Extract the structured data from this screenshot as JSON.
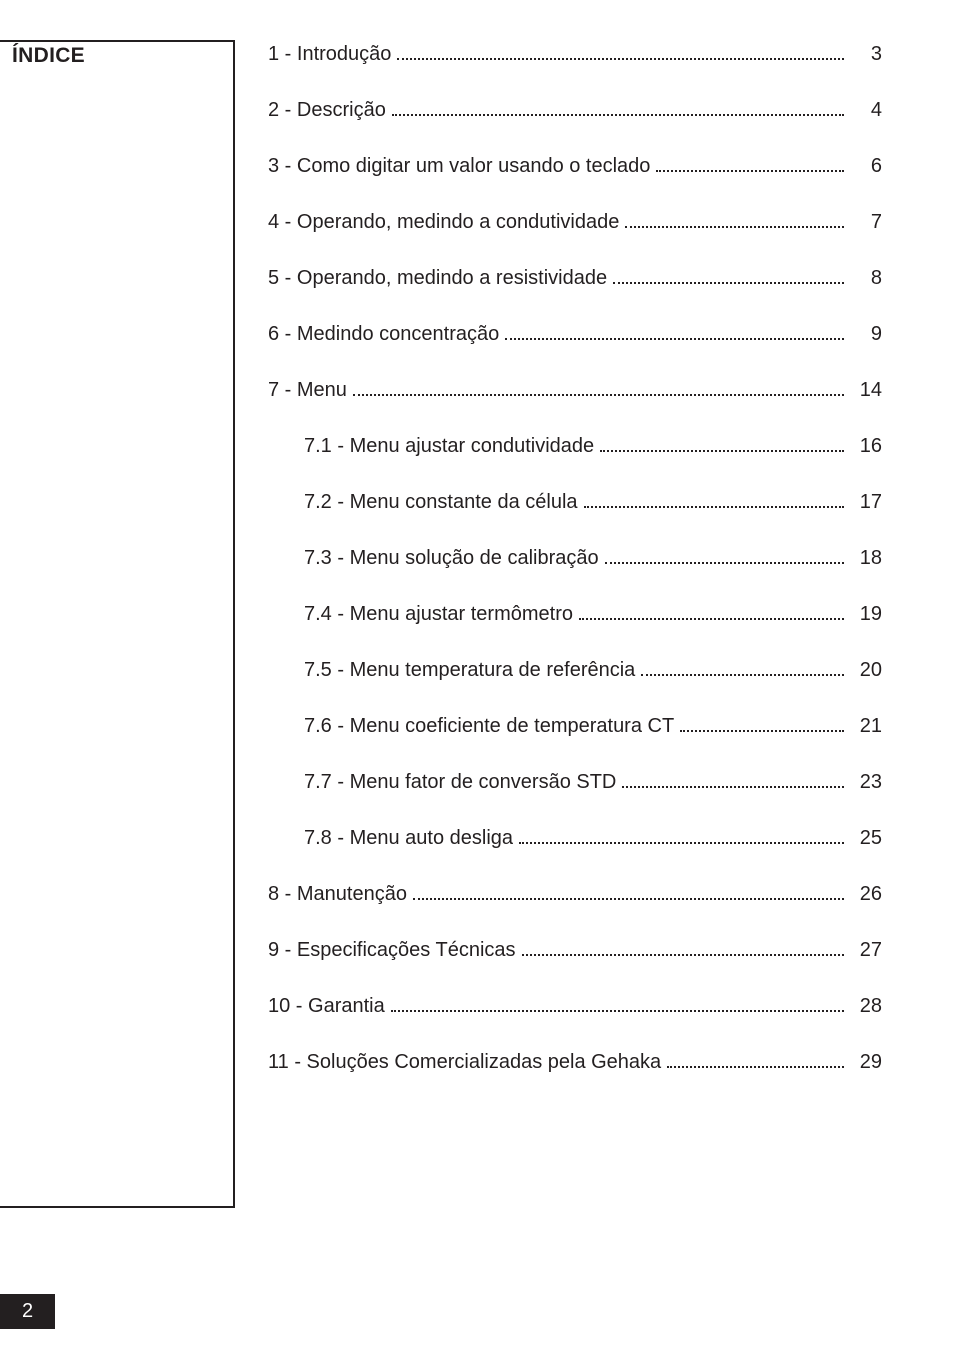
{
  "sidebar_title": "ÍNDICE",
  "toc": [
    {
      "label": "1 - Introdução",
      "page": "3",
      "sub": false
    },
    {
      "label": "2 - Descrição",
      "page": "4",
      "sub": false
    },
    {
      "label": "3 - Como digitar um valor usando o teclado",
      "page": "6",
      "sub": false
    },
    {
      "label": "4 - Operando, medindo a condutividade",
      "page": "7",
      "sub": false
    },
    {
      "label": "5 - Operando, medindo a resistividade",
      "page": "8",
      "sub": false
    },
    {
      "label": "6 - Medindo concentração",
      "page": "9",
      "sub": false
    },
    {
      "label": "7 - Menu",
      "page": "14",
      "sub": false
    },
    {
      "label": "7.1 - Menu ajustar condutividade",
      "page": "16",
      "sub": true
    },
    {
      "label": "7.2 - Menu constante da célula",
      "page": "17",
      "sub": true
    },
    {
      "label": "7.3 - Menu solução de calibração",
      "page": "18",
      "sub": true
    },
    {
      "label": "7.4 - Menu ajustar termômetro",
      "page": "19",
      "sub": true
    },
    {
      "label": "7.5 - Menu temperatura de referência",
      "page": "20",
      "sub": true
    },
    {
      "label": "7.6 - Menu coeficiente de temperatura CT",
      "page": "21",
      "sub": true
    },
    {
      "label": "7.7 - Menu fator de conversão STD",
      "page": "23",
      "sub": true
    },
    {
      "label": "7.8 - Menu auto desliga",
      "page": "25",
      "sub": true
    },
    {
      "label": "8 - Manutenção",
      "page": "26",
      "sub": false
    },
    {
      "label": "9 - Especificações Técnicas",
      "page": "27",
      "sub": false
    },
    {
      "label": "10 - Garantia",
      "page": "28",
      "sub": false
    },
    {
      "label": "11 - Soluções Comercializadas pela Gehaka",
      "page": "29",
      "sub": false
    }
  ],
  "footer_page": "2"
}
